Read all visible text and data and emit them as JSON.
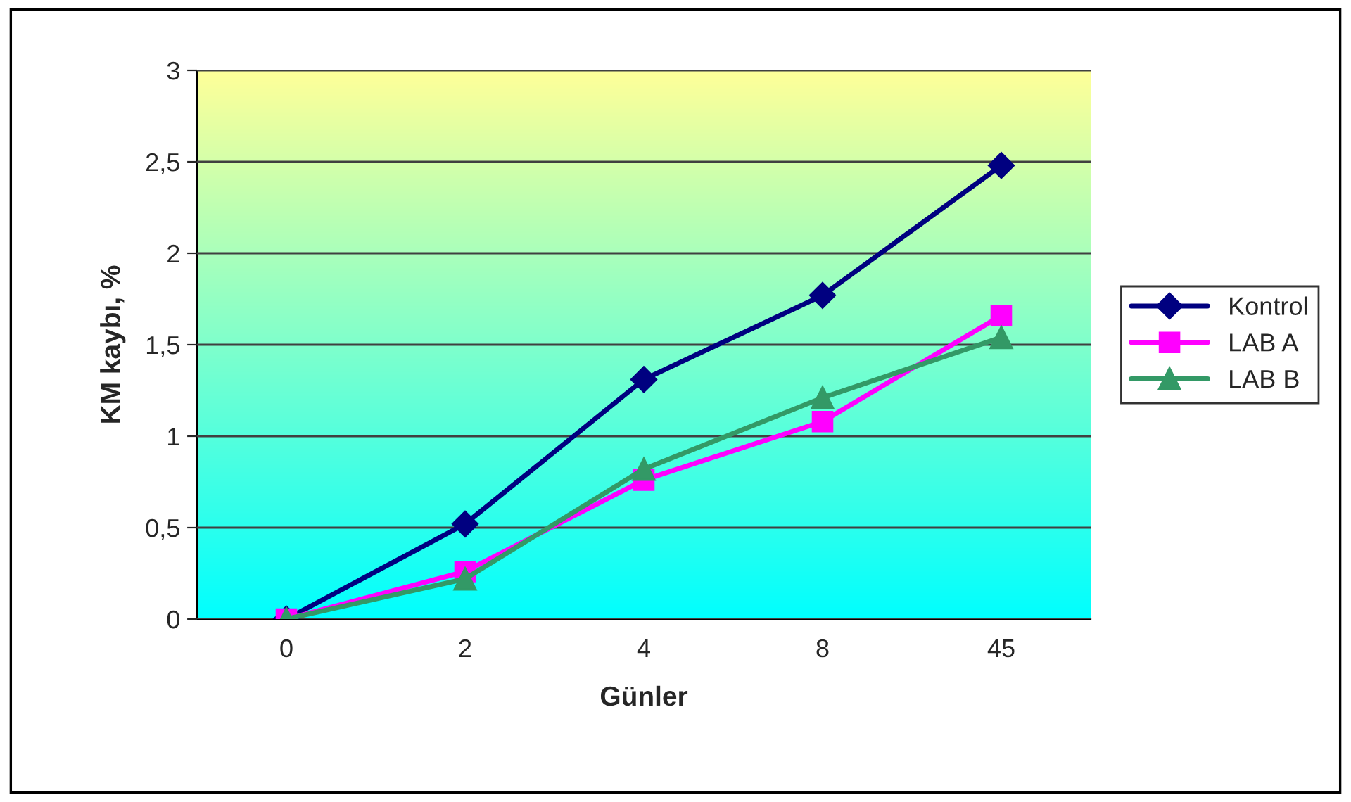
{
  "chart_data": {
    "type": "line",
    "xlabel": "Günler",
    "ylabel": "KM kaybı, %",
    "categories": [
      "0",
      "2",
      "4",
      "8",
      "45"
    ],
    "series": [
      {
        "name": "Kontrol",
        "color": "#000080",
        "marker": "diamond",
        "values": [
          0,
          0.52,
          1.31,
          1.77,
          2.48
        ]
      },
      {
        "name": "LAB A",
        "color": "#ff00ff",
        "marker": "square",
        "values": [
          0,
          0.26,
          0.76,
          1.08,
          1.66
        ]
      },
      {
        "name": "LAB B",
        "color": "#339966",
        "marker": "triangle",
        "values": [
          0,
          0.22,
          0.82,
          1.21,
          1.54
        ]
      }
    ],
    "ylim": [
      0,
      3
    ],
    "yticks": [
      {
        "value": 0,
        "label": "0"
      },
      {
        "value": 0.5,
        "label": "0,5"
      },
      {
        "value": 1,
        "label": "1"
      },
      {
        "value": 1.5,
        "label": "1,5"
      },
      {
        "value": 2,
        "label": "2"
      },
      {
        "value": 2.5,
        "label": "2,5"
      },
      {
        "value": 3,
        "label": "3"
      }
    ],
    "grid": "y",
    "legend": "right",
    "line_style": "solid"
  }
}
